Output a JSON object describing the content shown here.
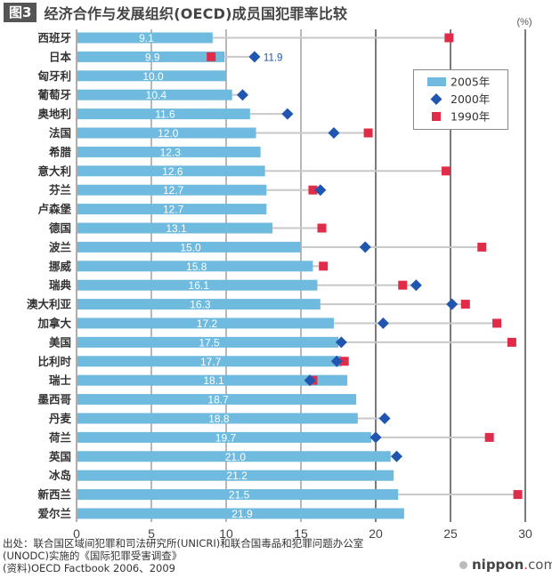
{
  "header": {
    "figure_badge": "图3",
    "title": "经济合作与发展组织(OECD)成员国犯罪率比较"
  },
  "chart_data": {
    "type": "bar",
    "orientation": "horizontal",
    "title": "经济合作与发展组织(OECD)成员国犯罪率比较",
    "unit_label": "(%)",
    "xlim": [
      0,
      30
    ],
    "xticks": [
      0,
      5,
      10,
      15,
      20,
      25,
      30
    ],
    "grid": true,
    "legend_position": "top-right",
    "legend": [
      {
        "name": "2005年",
        "marker": "bar",
        "color": "#6fbadf"
      },
      {
        "name": "2000年",
        "marker": "diamond",
        "color": "#2156b0"
      },
      {
        "name": "1990年",
        "marker": "square",
        "color": "#e02c48"
      }
    ],
    "categories": [
      "西班牙",
      "日本",
      "匈牙利",
      "葡萄牙",
      "奥地利",
      "法国",
      "希腊",
      "意大利",
      "芬兰",
      "卢森堡",
      "德国",
      "波兰",
      "挪威",
      "瑞典",
      "澳大利亚",
      "加拿大",
      "美国",
      "比利时",
      "瑞士",
      "墨西哥",
      "丹麦",
      "荷兰",
      "英国",
      "冰岛",
      "新西兰",
      "爱尔兰"
    ],
    "series": [
      {
        "name": "2005年",
        "values": [
          9.1,
          9.9,
          10.0,
          10.4,
          11.6,
          12.0,
          12.3,
          12.6,
          12.7,
          12.7,
          13.1,
          15.0,
          15.8,
          16.1,
          16.3,
          17.2,
          17.5,
          17.7,
          18.1,
          18.7,
          18.8,
          19.7,
          21.0,
          21.2,
          21.5,
          21.9
        ],
        "labels": [
          "9.1",
          "9.9",
          "10.0",
          "10.4",
          "11.6",
          "12.0",
          "12.3",
          "12.6",
          "12.7",
          "12.7",
          "13.1",
          "15.0",
          "15.8",
          "16.1",
          "16.3",
          "17.2",
          "17.5",
          "17.7",
          "18.1",
          "18.7",
          "18.8",
          "19.7",
          "21.0",
          "21.2",
          "21.5",
          "21.9"
        ]
      },
      {
        "name": "2000年",
        "values": [
          null,
          11.9,
          null,
          11.1,
          14.1,
          17.2,
          null,
          null,
          16.3,
          null,
          null,
          19.3,
          null,
          22.7,
          25.1,
          20.5,
          17.7,
          17.4,
          15.6,
          null,
          20.6,
          20.0,
          21.4,
          null,
          null,
          null
        ]
      },
      {
        "name": "1990年",
        "values": [
          24.9,
          9.0,
          null,
          null,
          null,
          19.5,
          null,
          24.7,
          15.8,
          null,
          16.4,
          27.1,
          16.5,
          21.8,
          26.0,
          28.1,
          29.1,
          17.9,
          15.8,
          null,
          null,
          27.6,
          null,
          null,
          29.5,
          null
        ]
      }
    ],
    "annotations": [
      {
        "category": "日本",
        "series": "2000年",
        "text": "11.9"
      }
    ],
    "colors": {
      "bar": "#6fbadf",
      "diamond": "#2156b0",
      "square": "#e02c48",
      "connector": "#c8c8c8"
    }
  },
  "footer": {
    "source_line1": "出处：联合国区域间犯罪和司法研究所(UNICRI)和联合国毒品和犯罪问题办公室",
    "source_line2": "(UNODC)实施的《国际犯罪受害调查》",
    "source_line3": "(资料)OECD  Factbook 2006、2009",
    "brand_name": "nippon",
    "brand_dot": ".",
    "brand_tld": "com"
  }
}
